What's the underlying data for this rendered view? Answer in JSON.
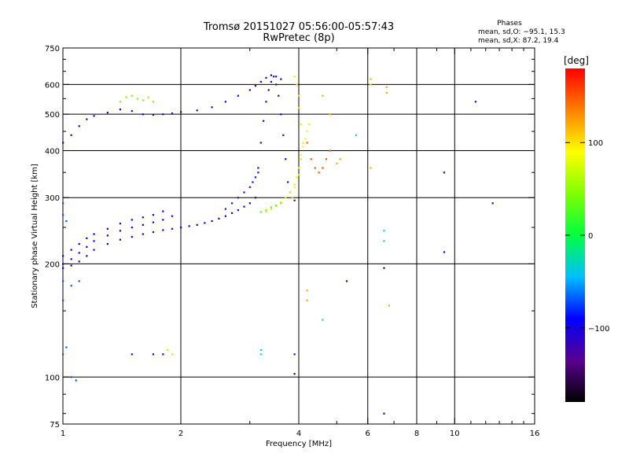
{
  "chart_data": {
    "type": "scatter",
    "title": "Tromsø 20151027 05:56:00-05:57:43",
    "subtitle": "RwPretec (8p)",
    "xlabel": "Frequency [MHz]",
    "ylabel": "Stationary phase Virtual Height [km]",
    "x_scale": "log",
    "y_scale": "log",
    "xlim": [
      1,
      16
    ],
    "ylim": [
      75,
      750
    ],
    "x_ticks": [
      1,
      2,
      4,
      6,
      8,
      10,
      16
    ],
    "x_tick_labels": [
      "1",
      "2",
      "4",
      "6",
      "8",
      "10",
      "16"
    ],
    "x_minor_ticks": [
      3,
      5,
      7,
      9,
      11,
      12,
      13,
      14,
      15
    ],
    "y_ticks": [
      75,
      100,
      200,
      300,
      400,
      500,
      600,
      750
    ],
    "y_tick_labels": [
      "75",
      "100",
      "200",
      "300",
      "400",
      "500",
      "600",
      "750"
    ],
    "y_minor_ticks": [
      80,
      90,
      150,
      250,
      350,
      450,
      550,
      650,
      700
    ],
    "gridlines_x": [
      2,
      4,
      6,
      8,
      10
    ],
    "gridlines_y": [
      100,
      200,
      300,
      400,
      500,
      600
    ],
    "grid": true,
    "stats": {
      "heading": "Phases",
      "line_o": "mean, sd,O: −95.1, 15.3",
      "line_x": "mean, sd,X:  87.2, 19.4"
    },
    "colorbar": {
      "label": "[deg]",
      "min": -180,
      "max": 180,
      "ticks": [
        100,
        0,
        -100
      ],
      "tick_labels": [
        "100",
        "0",
        "−100"
      ],
      "stops": [
        "#000000",
        "#5a0090",
        "#0000ff",
        "#00bfff",
        "#00ff40",
        "#80ff00",
        "#ffff00",
        "#ff8000",
        "#ff0000"
      ]
    },
    "traces": [
      {
        "name": "",
        "phase": -100,
        "points": [
          [
            1.0,
            195
          ],
          [
            1.05,
            198
          ],
          [
            1.1,
            203
          ],
          [
            1.15,
            210
          ],
          [
            1.2,
            218
          ],
          [
            1.3,
            226
          ],
          [
            1.4,
            232
          ],
          [
            1.5,
            236
          ],
          [
            1.6,
            240
          ],
          [
            1.7,
            243
          ],
          [
            1.8,
            246
          ],
          [
            1.9,
            248
          ],
          [
            2.0,
            250
          ],
          [
            2.1,
            252
          ],
          [
            2.2,
            254
          ],
          [
            2.3,
            257
          ],
          [
            2.4,
            260
          ],
          [
            2.5,
            264
          ],
          [
            2.6,
            268
          ],
          [
            2.7,
            273
          ],
          [
            2.8,
            278
          ],
          [
            2.9,
            284
          ],
          [
            3.0,
            290
          ]
        ]
      },
      {
        "name": "",
        "phase": -95,
        "points": [
          [
            1.0,
            200
          ],
          [
            1.05,
            206
          ],
          [
            1.1,
            214
          ],
          [
            1.15,
            222
          ],
          [
            1.2,
            230
          ],
          [
            1.3,
            238
          ],
          [
            1.4,
            245
          ],
          [
            1.5,
            250
          ],
          [
            1.6,
            254
          ],
          [
            1.7,
            258
          ],
          [
            1.8,
            262
          ],
          [
            1.9,
            268
          ]
        ]
      },
      {
        "name": "",
        "phase": -90,
        "points": [
          [
            1.0,
            210
          ],
          [
            1.05,
            218
          ],
          [
            1.1,
            226
          ],
          [
            1.15,
            234
          ],
          [
            1.2,
            240
          ],
          [
            1.3,
            248
          ],
          [
            1.4,
            256
          ],
          [
            1.5,
            262
          ],
          [
            1.6,
            266
          ],
          [
            1.7,
            270
          ],
          [
            1.8,
            276
          ]
        ]
      },
      {
        "name": "",
        "phase": -105,
        "points": [
          [
            1.0,
            420
          ],
          [
            1.05,
            440
          ],
          [
            1.1,
            465
          ],
          [
            1.15,
            485
          ],
          [
            1.2,
            495
          ],
          [
            1.3,
            505
          ],
          [
            1.4,
            515
          ],
          [
            1.5,
            510
          ],
          [
            1.6,
            500
          ],
          [
            1.7,
            498
          ],
          [
            1.8,
            500
          ],
          [
            1.9,
            503
          ],
          [
            2.0,
            507
          ],
          [
            2.2,
            512
          ],
          [
            2.4,
            522
          ],
          [
            2.6,
            540
          ],
          [
            2.8,
            560
          ],
          [
            3.0,
            580
          ],
          [
            3.1,
            595
          ],
          [
            3.2,
            610
          ],
          [
            3.3,
            625
          ],
          [
            3.4,
            635
          ],
          [
            3.5,
            630
          ],
          [
            3.6,
            620
          ]
        ]
      },
      {
        "name": "",
        "phase": -110,
        "points": [
          [
            3.1,
            300
          ],
          [
            3.15,
            360
          ],
          [
            3.2,
            420
          ],
          [
            3.25,
            480
          ],
          [
            3.3,
            540
          ],
          [
            3.35,
            580
          ],
          [
            3.4,
            610
          ],
          [
            3.45,
            630
          ],
          [
            3.5,
            600
          ],
          [
            3.55,
            560
          ],
          [
            3.6,
            500
          ],
          [
            3.65,
            440
          ],
          [
            3.7,
            380
          ],
          [
            3.75,
            330
          ],
          [
            3.8,
            310
          ],
          [
            3.85,
            300
          ],
          [
            3.9,
            295
          ]
        ]
      },
      {
        "name": "",
        "phase": -85,
        "points": [
          [
            2.6,
            280
          ],
          [
            2.7,
            290
          ],
          [
            2.8,
            300
          ],
          [
            2.9,
            310
          ],
          [
            3.0,
            320
          ],
          [
            3.05,
            330
          ],
          [
            3.1,
            340
          ],
          [
            3.15,
            350
          ]
        ]
      },
      {
        "name": "",
        "phase": 100,
        "points": [
          [
            3.3,
            275
          ],
          [
            3.4,
            280
          ],
          [
            3.5,
            285
          ],
          [
            3.6,
            292
          ],
          [
            3.7,
            300
          ],
          [
            3.8,
            310
          ],
          [
            3.9,
            325
          ],
          [
            4.0,
            345
          ],
          [
            4.05,
            380
          ],
          [
            4.1,
            420
          ],
          [
            4.05,
            470
          ],
          [
            4.0,
            520
          ],
          [
            4.0,
            560
          ],
          [
            3.95,
            600
          ],
          [
            3.9,
            630
          ]
        ]
      },
      {
        "name": "",
        "phase": 80,
        "points": [
          [
            3.85,
            300
          ],
          [
            3.9,
            320
          ],
          [
            3.95,
            340
          ],
          [
            4.0,
            360
          ],
          [
            4.05,
            390
          ],
          [
            4.1,
            410
          ],
          [
            4.15,
            430
          ],
          [
            4.2,
            450
          ],
          [
            4.25,
            470
          ]
        ]
      },
      {
        "name": "",
        "phase": 35,
        "points": [
          [
            3.2,
            275
          ],
          [
            3.3,
            278
          ],
          [
            3.4,
            283
          ],
          [
            3.5,
            286
          ],
          [
            3.6,
            290
          ]
        ]
      },
      {
        "name": "",
        "phase": 150,
        "points": [
          [
            4.2,
            420
          ],
          [
            4.3,
            380
          ],
          [
            4.4,
            360
          ],
          [
            4.5,
            350
          ],
          [
            4.6,
            360
          ],
          [
            4.7,
            380
          ],
          [
            4.8,
            400
          ]
        ]
      },
      {
        "name": "",
        "phase": 45,
        "points": [
          [
            1.4,
            540
          ],
          [
            1.45,
            555
          ],
          [
            1.5,
            560
          ],
          [
            1.55,
            550
          ],
          [
            1.6,
            545
          ],
          [
            1.65,
            555
          ],
          [
            1.7,
            540
          ]
        ]
      },
      {
        "name": "",
        "phase": -70,
        "points": [
          [
            1.0,
            290
          ],
          [
            1.0,
            270
          ],
          [
            1.02,
            260
          ],
          [
            1.0,
            180
          ],
          [
            1.05,
            175
          ],
          [
            1.1,
            180
          ],
          [
            1.0,
            160
          ],
          [
            1.02,
            120
          ],
          [
            1.0,
            115
          ],
          [
            1.05,
            100
          ],
          [
            1.08,
            98
          ]
        ]
      },
      {
        "name": "",
        "phase": -100,
        "points": [
          [
            1.5,
            115
          ],
          [
            1.7,
            115
          ],
          [
            1.8,
            115
          ],
          [
            3.9,
            115
          ],
          [
            3.9,
            102
          ],
          [
            5.3,
            180
          ],
          [
            6.6,
            195
          ],
          [
            6.6,
            80
          ],
          [
            9.4,
            350
          ],
          [
            9.4,
            215
          ],
          [
            12.5,
            290
          ],
          [
            11.3,
            540
          ]
        ]
      },
      {
        "name": "",
        "phase": 120,
        "points": [
          [
            4.2,
            170
          ],
          [
            4.2,
            160
          ],
          [
            6.1,
            620
          ],
          [
            6.1,
            360
          ],
          [
            6.7,
            570
          ],
          [
            6.7,
            590
          ],
          [
            6.8,
            155
          ],
          [
            4.6,
            560
          ],
          [
            4.8,
            500
          ],
          [
            5.1,
            380
          ],
          [
            5.0,
            370
          ]
        ]
      },
      {
        "name": "",
        "phase": -20,
        "points": [
          [
            4.6,
            142
          ],
          [
            5.6,
            440
          ],
          [
            6.6,
            245
          ],
          [
            6.6,
            230
          ],
          [
            3.2,
            115
          ],
          [
            3.2,
            118
          ]
        ]
      },
      {
        "name": "",
        "phase": 60,
        "points": [
          [
            6.1,
            600
          ],
          [
            1.9,
            115
          ],
          [
            1.85,
            118
          ]
        ]
      }
    ]
  }
}
